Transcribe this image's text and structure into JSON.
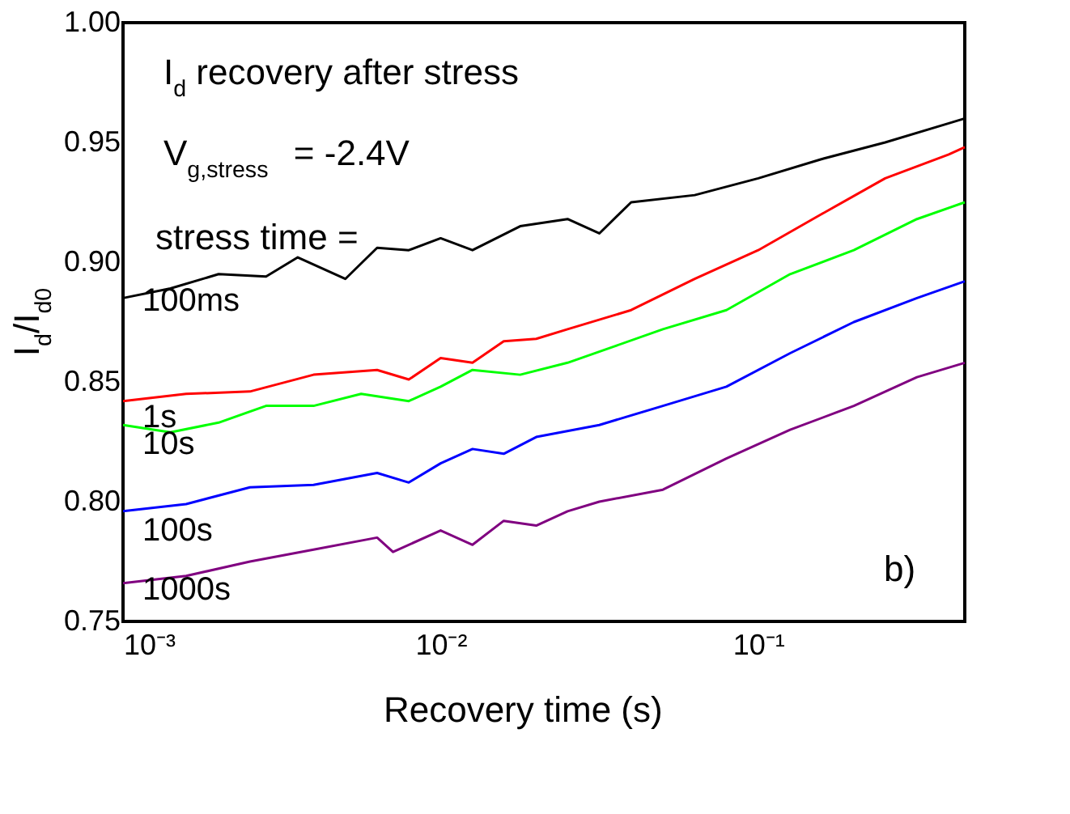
{
  "chart_data": {
    "type": "line",
    "xlabel": "Recovery time (s)",
    "ylabel": "I$_{d}$/I$_{d0}$",
    "log": "x",
    "grid": false,
    "legend": false,
    "marker": "none",
    "line_style": "solid",
    "xlim": [
      0.001,
      0.447
    ],
    "xticks": [
      {
        "value": 0.001,
        "label": "10⁻³"
      },
      {
        "value": 0.01,
        "label": "10⁻²"
      },
      {
        "value": 0.1,
        "label": "10⁻¹"
      }
    ],
    "ylim": [
      0.75,
      1.0
    ],
    "yticks": [
      {
        "value": 0.75,
        "label": "0.75"
      },
      {
        "value": 0.8,
        "label": "0.80"
      },
      {
        "value": 0.85,
        "label": "0.85"
      },
      {
        "value": 0.9,
        "label": "0.90"
      },
      {
        "value": 0.95,
        "label": "0.95"
      },
      {
        "value": 1.0,
        "label": "1.00"
      }
    ],
    "annotations": [
      "I$_{d}$ recovery after stress",
      "V$_{g,stress}$ = -2.4V",
      "stress time =",
      "b)"
    ],
    "series": [
      {
        "name": "100ms",
        "color": "#000000",
        "x": [
          0.001,
          0.00141,
          0.002,
          0.00282,
          0.00355,
          0.00501,
          0.00631,
          0.00794,
          0.01,
          0.0126,
          0.0178,
          0.0251,
          0.0316,
          0.0398,
          0.0631,
          0.1,
          0.158,
          0.251,
          0.398,
          0.447
        ],
        "values": [
          0.885,
          0.889,
          0.895,
          0.894,
          0.902,
          0.893,
          0.906,
          0.905,
          0.91,
          0.905,
          0.915,
          0.918,
          0.912,
          0.925,
          0.928,
          0.935,
          0.943,
          0.95,
          0.958,
          0.96
        ]
      },
      {
        "name": "1s",
        "color": "#ff0000",
        "x": [
          0.001,
          0.00158,
          0.00251,
          0.00398,
          0.00631,
          0.00794,
          0.01,
          0.0126,
          0.0158,
          0.02,
          0.0251,
          0.0398,
          0.0631,
          0.1,
          0.158,
          0.251,
          0.398,
          0.447
        ],
        "values": [
          0.842,
          0.845,
          0.846,
          0.853,
          0.855,
          0.851,
          0.86,
          0.858,
          0.867,
          0.868,
          0.872,
          0.88,
          0.893,
          0.905,
          0.92,
          0.935,
          0.945,
          0.948
        ]
      },
      {
        "name": "10s",
        "color": "#00ff00",
        "x": [
          0.001,
          0.00141,
          0.002,
          0.00282,
          0.00398,
          0.00562,
          0.00794,
          0.01,
          0.0126,
          0.0178,
          0.0251,
          0.0355,
          0.0501,
          0.0794,
          0.126,
          0.2,
          0.316,
          0.447
        ],
        "values": [
          0.832,
          0.829,
          0.833,
          0.84,
          0.84,
          0.845,
          0.842,
          0.848,
          0.855,
          0.853,
          0.858,
          0.865,
          0.872,
          0.88,
          0.895,
          0.905,
          0.918,
          0.925
        ]
      },
      {
        "name": "100s",
        "color": "#0000ff",
        "x": [
          0.001,
          0.00158,
          0.00251,
          0.00398,
          0.00631,
          0.00794,
          0.01,
          0.0126,
          0.0158,
          0.02,
          0.0316,
          0.0501,
          0.0794,
          0.126,
          0.2,
          0.316,
          0.447
        ],
        "values": [
          0.796,
          0.799,
          0.806,
          0.807,
          0.812,
          0.808,
          0.816,
          0.822,
          0.82,
          0.827,
          0.832,
          0.84,
          0.848,
          0.862,
          0.875,
          0.885,
          0.892
        ]
      },
      {
        "name": "1000s",
        "color": "#800080",
        "x": [
          0.001,
          0.00158,
          0.00251,
          0.00398,
          0.00631,
          0.00708,
          0.01,
          0.0126,
          0.0158,
          0.02,
          0.0251,
          0.0316,
          0.0501,
          0.0794,
          0.126,
          0.2,
          0.316,
          0.447
        ],
        "values": [
          0.766,
          0.769,
          0.775,
          0.78,
          0.785,
          0.779,
          0.788,
          0.782,
          0.792,
          0.79,
          0.796,
          0.8,
          0.805,
          0.818,
          0.83,
          0.84,
          0.852,
          0.858
        ]
      }
    ]
  }
}
